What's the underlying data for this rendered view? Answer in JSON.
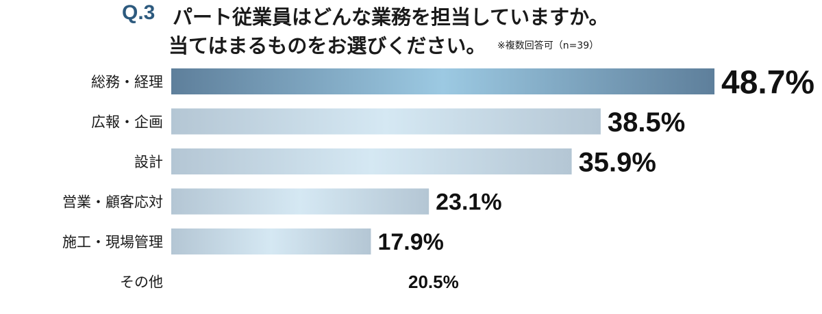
{
  "header": {
    "q_label": "Q.3",
    "title_line1": "パート従業員はどんな業務を担当していますか。",
    "title_line2": "当てはまるものをお選びください。",
    "note": "※複数回答可（n=39）"
  },
  "chart_data": {
    "type": "bar",
    "orientation": "horizontal",
    "categories": [
      "総務・経理",
      "広報・企画",
      "設計",
      "営業・顧客応対",
      "施工・現場管理",
      "その他"
    ],
    "values": [
      48.7,
      38.5,
      35.9,
      23.1,
      17.9,
      20.5
    ],
    "value_labels": [
      "48.7%",
      "38.5%",
      "35.9%",
      "23.1%",
      "17.9%",
      "20.5%"
    ],
    "bar_drawn": [
      true,
      true,
      true,
      true,
      true,
      false
    ],
    "highlight_index": 0,
    "colors": {
      "highlight_start": "#5e7f9b",
      "highlight_mid": "#9cc9e2",
      "normal_start": "#b4c6d4",
      "normal_mid": "#d5e8f3"
    },
    "title": "",
    "xlabel": "",
    "ylabel": "",
    "grid": false,
    "legend": "none"
  }
}
